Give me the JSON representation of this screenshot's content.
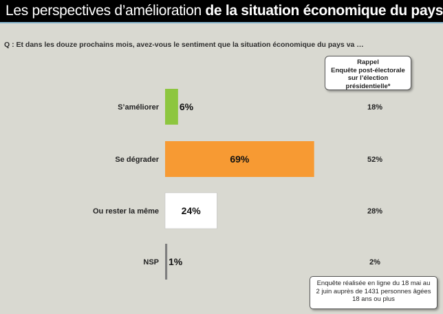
{
  "header": {
    "title_part1": "Les perspectives d’amélioration ",
    "title_part2": "de la situation économique du pays"
  },
  "question": "Q : Et dans les douze prochains mois, avez-vous le sentiment que la situation  économique du pays va …",
  "rappel": {
    "lines": [
      "Rappel",
      "Enquête post-électorale",
      "sur l’élection",
      "présidentielle*"
    ]
  },
  "note": "Enquête réalisée en ligne du 18 mai au 2 juin auprès de 1431 personnes âgées 18 ans ou plus",
  "chart_data": {
    "type": "bar",
    "orientation": "horizontal",
    "categories": [
      "S’améliorer",
      "Se dégrader",
      "Ou rester la même",
      "NSP"
    ],
    "values": [
      6,
      69,
      24,
      1
    ],
    "value_labels": [
      "6%",
      "69%",
      "24%",
      "1%"
    ],
    "bar_colors": [
      "#8dc63f",
      "#f79a33",
      "#ffffff",
      "#7f7f7f"
    ],
    "recall_values": [
      "18%",
      "52%",
      "28%",
      "2%"
    ],
    "title": "",
    "xlabel": "",
    "ylabel": "",
    "xlim": [
      0,
      100
    ]
  }
}
